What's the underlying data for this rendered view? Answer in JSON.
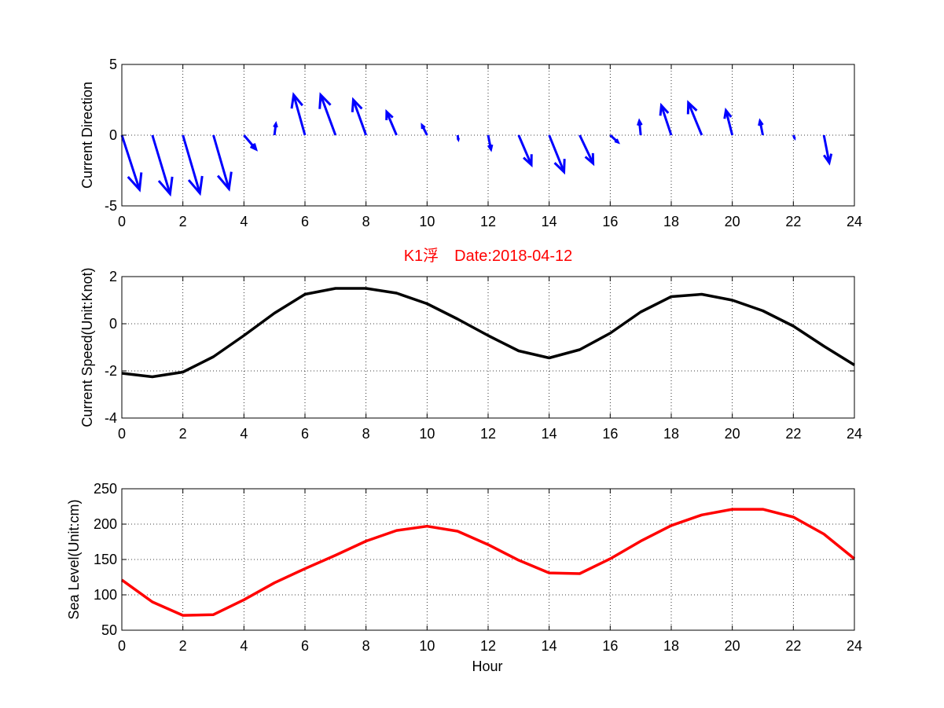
{
  "figure": {
    "title": "K1浮　Date:2018-04-12",
    "title_color": "#ff0000",
    "background": "#ffffff"
  },
  "chart_data": [
    {
      "type": "quiver",
      "x": [
        0,
        1,
        2,
        3,
        4,
        5,
        6,
        7,
        8,
        9,
        10,
        11,
        12,
        13,
        14,
        15,
        16,
        17,
        18,
        19,
        20,
        21,
        22,
        23
      ],
      "u": [
        1.25,
        1.25,
        1.2,
        1.1,
        0.85,
        0.1,
        -0.8,
        -1.05,
        -0.9,
        -0.7,
        -0.35,
        0.05,
        0.2,
        0.9,
        1.05,
        0.95,
        0.55,
        -0.1,
        -0.7,
        -0.95,
        -0.45,
        -0.2,
        0.08,
        0.38
      ],
      "v": [
        -3.85,
        -4.15,
        -4.1,
        -3.8,
        -1.0,
        0.8,
        2.85,
        2.85,
        2.5,
        1.65,
        0.7,
        -0.3,
        -1.0,
        -2.1,
        -2.6,
        -2.0,
        -0.5,
        1.0,
        2.1,
        2.3,
        1.75,
        1.0,
        -0.2,
        -1.95
      ],
      "xlabel": "",
      "ylabel": "Current Direction",
      "xlim": [
        0,
        24
      ],
      "ylim": [
        -5,
        5
      ],
      "xticks": [
        0,
        2,
        4,
        6,
        8,
        10,
        12,
        14,
        16,
        18,
        20,
        22,
        24
      ],
      "yticks": [
        5,
        0,
        -5
      ],
      "grid": true,
      "color": "#0000ff"
    },
    {
      "type": "line",
      "title": "K1浮　Date:2018-04-12",
      "x": [
        0,
        1,
        2,
        3,
        4,
        5,
        6,
        7,
        8,
        9,
        10,
        11,
        12,
        13,
        14,
        15,
        16,
        17,
        18,
        19,
        20,
        21,
        22,
        23,
        24
      ],
      "values": [
        -2.1,
        -2.25,
        -2.05,
        -1.4,
        -0.5,
        0.45,
        1.25,
        1.5,
        1.5,
        1.3,
        0.85,
        0.2,
        -0.5,
        -1.15,
        -1.45,
        -1.1,
        -0.4,
        0.5,
        1.15,
        1.25,
        1.0,
        0.55,
        -0.1,
        -0.95,
        -1.75
      ],
      "xlabel": "",
      "ylabel": "Current Speed(Unit:Knot)",
      "xlim": [
        0,
        24
      ],
      "ylim": [
        -4,
        2
      ],
      "xticks": [
        0,
        2,
        4,
        6,
        8,
        10,
        12,
        14,
        16,
        18,
        20,
        22,
        24
      ],
      "yticks": [
        2,
        0,
        -2,
        -4
      ],
      "grid": true,
      "color": "#000000"
    },
    {
      "type": "line",
      "x": [
        0,
        1,
        2,
        3,
        4,
        5,
        6,
        7,
        8,
        9,
        10,
        11,
        12,
        13,
        14,
        15,
        16,
        17,
        18,
        19,
        20,
        21,
        22,
        23,
        24
      ],
      "values": [
        121,
        90,
        71,
        72,
        93,
        117,
        137,
        156,
        176,
        191,
        197,
        190,
        171,
        149,
        131,
        130,
        151,
        176,
        198,
        213,
        221,
        221,
        210,
        186,
        151
      ],
      "xlabel": "Hour",
      "ylabel": "Sea Level(Unit:cm)",
      "xlim": [
        0,
        24
      ],
      "ylim": [
        50,
        250
      ],
      "xticks": [
        0,
        2,
        4,
        6,
        8,
        10,
        12,
        14,
        16,
        18,
        20,
        22,
        24
      ],
      "yticks": [
        250,
        200,
        150,
        100,
        50
      ],
      "grid": true,
      "color": "#ff0000"
    }
  ]
}
